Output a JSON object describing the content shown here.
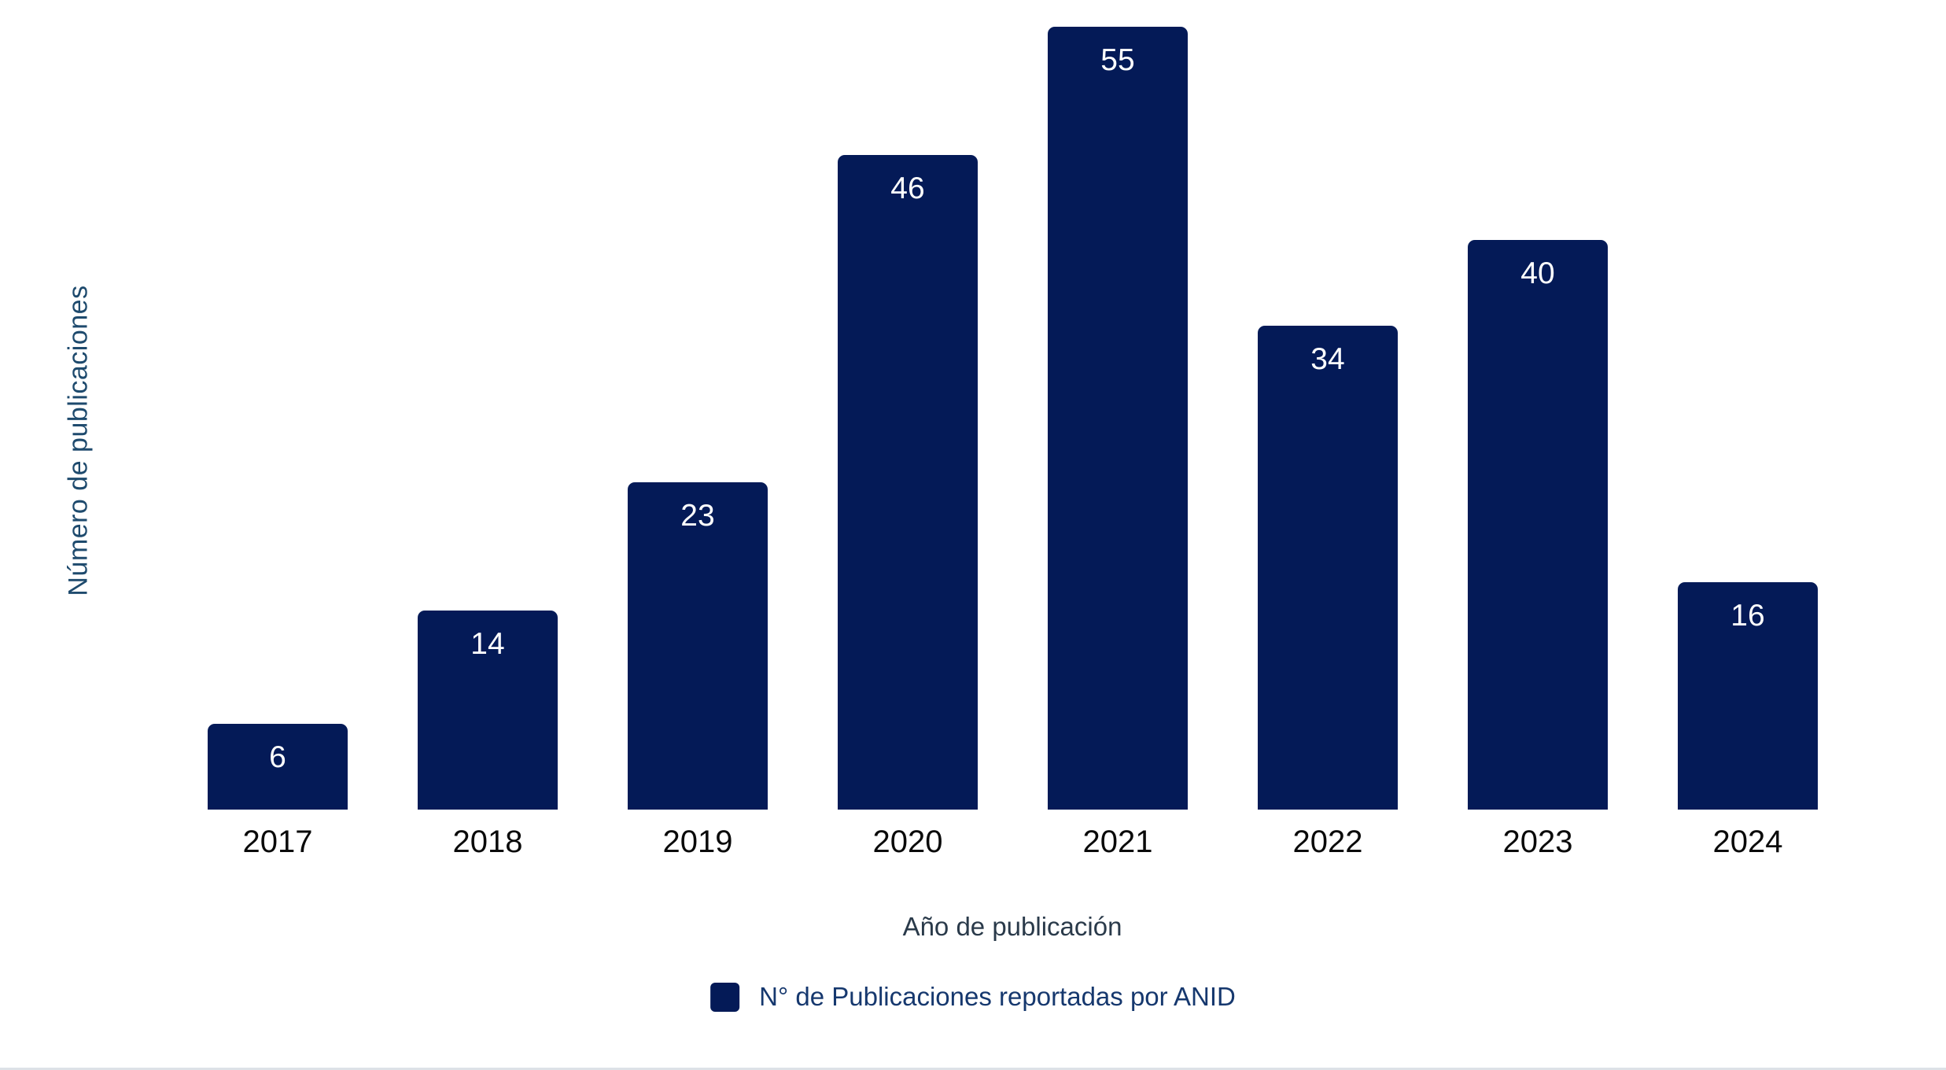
{
  "chart_data": {
    "type": "bar",
    "categories": [
      "2017",
      "2018",
      "2019",
      "2020",
      "2021",
      "2022",
      "2023",
      "2024"
    ],
    "values": [
      6,
      14,
      23,
      46,
      55,
      34,
      40,
      16
    ],
    "title": "",
    "xlabel": "Año de publicación",
    "ylabel": "Número de publicaciones",
    "ylim": [
      0,
      55
    ],
    "grid": false,
    "value_labels": {
      "position": "inside-top",
      "color": "#ffffff"
    },
    "legend": {
      "position": "bottom-center",
      "items": [
        {
          "label": "N° de Publicaciones reportadas por ANID",
          "swatch_color": "#041a57"
        }
      ]
    }
  },
  "colors": {
    "background": "#ffffff",
    "bar": "#041a57",
    "value_label": "#ffffff",
    "x_tick": "#0a0a0a",
    "x_title": "#2a3a4a",
    "y_title": "#1e4a6d",
    "legend_text": "#16386e",
    "divider": "#dde2e7"
  }
}
